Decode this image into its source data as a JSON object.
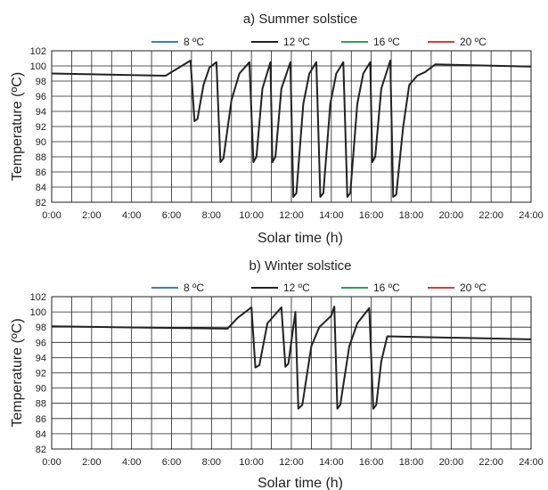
{
  "chart_data": [
    {
      "type": "line",
      "title": "a) Summer solstice",
      "xlabel": "Solar time (h)",
      "ylabel": "Temperature (ºC)",
      "xlim": [
        0,
        24
      ],
      "ylim": [
        82,
        102
      ],
      "x_ticks": [
        "0:00",
        "2:00",
        "4:00",
        "6:00",
        "8:00",
        "10:00",
        "12:00",
        "14:00",
        "16:00",
        "18:00",
        "20:00",
        "22:00",
        "24:00"
      ],
      "y_ticks": [
        82,
        84,
        86,
        88,
        90,
        92,
        94,
        96,
        98,
        100,
        102
      ],
      "grid": true,
      "legend_position": "top",
      "legend": [
        {
          "name": "8 ºC",
          "color": "#3a7fc4"
        },
        {
          "name": "12 ºC",
          "color": "#222222"
        },
        {
          "name": "16 ºC",
          "color": "#2e9e5b"
        },
        {
          "name": "20 ºC",
          "color": "#e0393e"
        }
      ],
      "series": [
        {
          "name": "12 ºC",
          "color": "#222222",
          "points": [
            [
              0,
              99.0
            ],
            [
              5.7,
              98.7
            ],
            [
              6.95,
              100.7
            ],
            [
              7.15,
              92.7
            ],
            [
              7.3,
              93.0
            ],
            [
              7.6,
              97.5
            ],
            [
              7.9,
              99.8
            ],
            [
              8.25,
              100.5
            ],
            [
              8.45,
              87.3
            ],
            [
              8.6,
              87.8
            ],
            [
              9.0,
              95.5
            ],
            [
              9.4,
              99.0
            ],
            [
              9.9,
              100.5
            ],
            [
              10.1,
              87.3
            ],
            [
              10.25,
              88.0
            ],
            [
              10.55,
              97.0
            ],
            [
              10.95,
              100.5
            ],
            [
              11.05,
              87.3
            ],
            [
              11.2,
              88.0
            ],
            [
              11.5,
              97.0
            ],
            [
              11.95,
              100.5
            ],
            [
              12.1,
              82.7
            ],
            [
              12.25,
              83.2
            ],
            [
              12.6,
              95.0
            ],
            [
              12.9,
              99.0
            ],
            [
              13.25,
              100.5
            ],
            [
              13.45,
              82.7
            ],
            [
              13.6,
              83.2
            ],
            [
              13.95,
              95.0
            ],
            [
              14.25,
              99.0
            ],
            [
              14.6,
              100.5
            ],
            [
              14.8,
              82.7
            ],
            [
              14.95,
              83.2
            ],
            [
              15.3,
              95.0
            ],
            [
              15.6,
              99.0
            ],
            [
              15.95,
              100.5
            ],
            [
              16.05,
              87.3
            ],
            [
              16.2,
              88.0
            ],
            [
              16.5,
              97.0
            ],
            [
              16.95,
              100.7
            ],
            [
              17.1,
              82.7
            ],
            [
              17.25,
              83.0
            ],
            [
              17.6,
              92.0
            ],
            [
              17.9,
              97.5
            ],
            [
              18.3,
              98.7
            ],
            [
              18.7,
              99.2
            ],
            [
              19.2,
              100.2
            ],
            [
              24,
              99.9
            ]
          ]
        }
      ]
    },
    {
      "type": "line",
      "title": "b) Winter solstice",
      "xlabel": "Solar time (h)",
      "ylabel": "Temperature (ºC)",
      "xlim": [
        0,
        24
      ],
      "ylim": [
        82,
        102
      ],
      "x_ticks": [
        "0:00",
        "2:00",
        "4:00",
        "6:00",
        "8:00",
        "10:00",
        "12:00",
        "14:00",
        "16:00",
        "18:00",
        "20:00",
        "22:00",
        "24:00"
      ],
      "y_ticks": [
        82,
        84,
        86,
        88,
        90,
        92,
        94,
        96,
        98,
        100,
        102
      ],
      "grid": true,
      "legend_position": "top",
      "legend": [
        {
          "name": "8 ºC",
          "color": "#3a7fc4"
        },
        {
          "name": "12 ºC",
          "color": "#222222"
        },
        {
          "name": "16 ºC",
          "color": "#2e9e5b"
        },
        {
          "name": "20 ºC",
          "color": "#e0393e"
        }
      ],
      "series": [
        {
          "name": "12 ºC",
          "color": "#222222",
          "points": [
            [
              0,
              98.1
            ],
            [
              8.8,
              97.8
            ],
            [
              9.3,
              99.2
            ],
            [
              10.0,
              100.6
            ],
            [
              10.2,
              92.7
            ],
            [
              10.4,
              93.0
            ],
            [
              10.8,
              98.5
            ],
            [
              11.5,
              100.6
            ],
            [
              11.7,
              92.8
            ],
            [
              11.85,
              93.2
            ],
            [
              12.2,
              100.0
            ],
            [
              12.35,
              87.3
            ],
            [
              12.55,
              87.8
            ],
            [
              13.0,
              95.5
            ],
            [
              13.4,
              98.0
            ],
            [
              14.0,
              99.5
            ],
            [
              14.15,
              100.7
            ],
            [
              14.3,
              87.3
            ],
            [
              14.45,
              87.8
            ],
            [
              14.9,
              95.5
            ],
            [
              15.3,
              98.5
            ],
            [
              15.9,
              100.5
            ],
            [
              16.1,
              87.3
            ],
            [
              16.25,
              87.8
            ],
            [
              16.5,
              93.5
            ],
            [
              16.8,
              96.8
            ],
            [
              24,
              96.4
            ]
          ]
        }
      ]
    }
  ]
}
